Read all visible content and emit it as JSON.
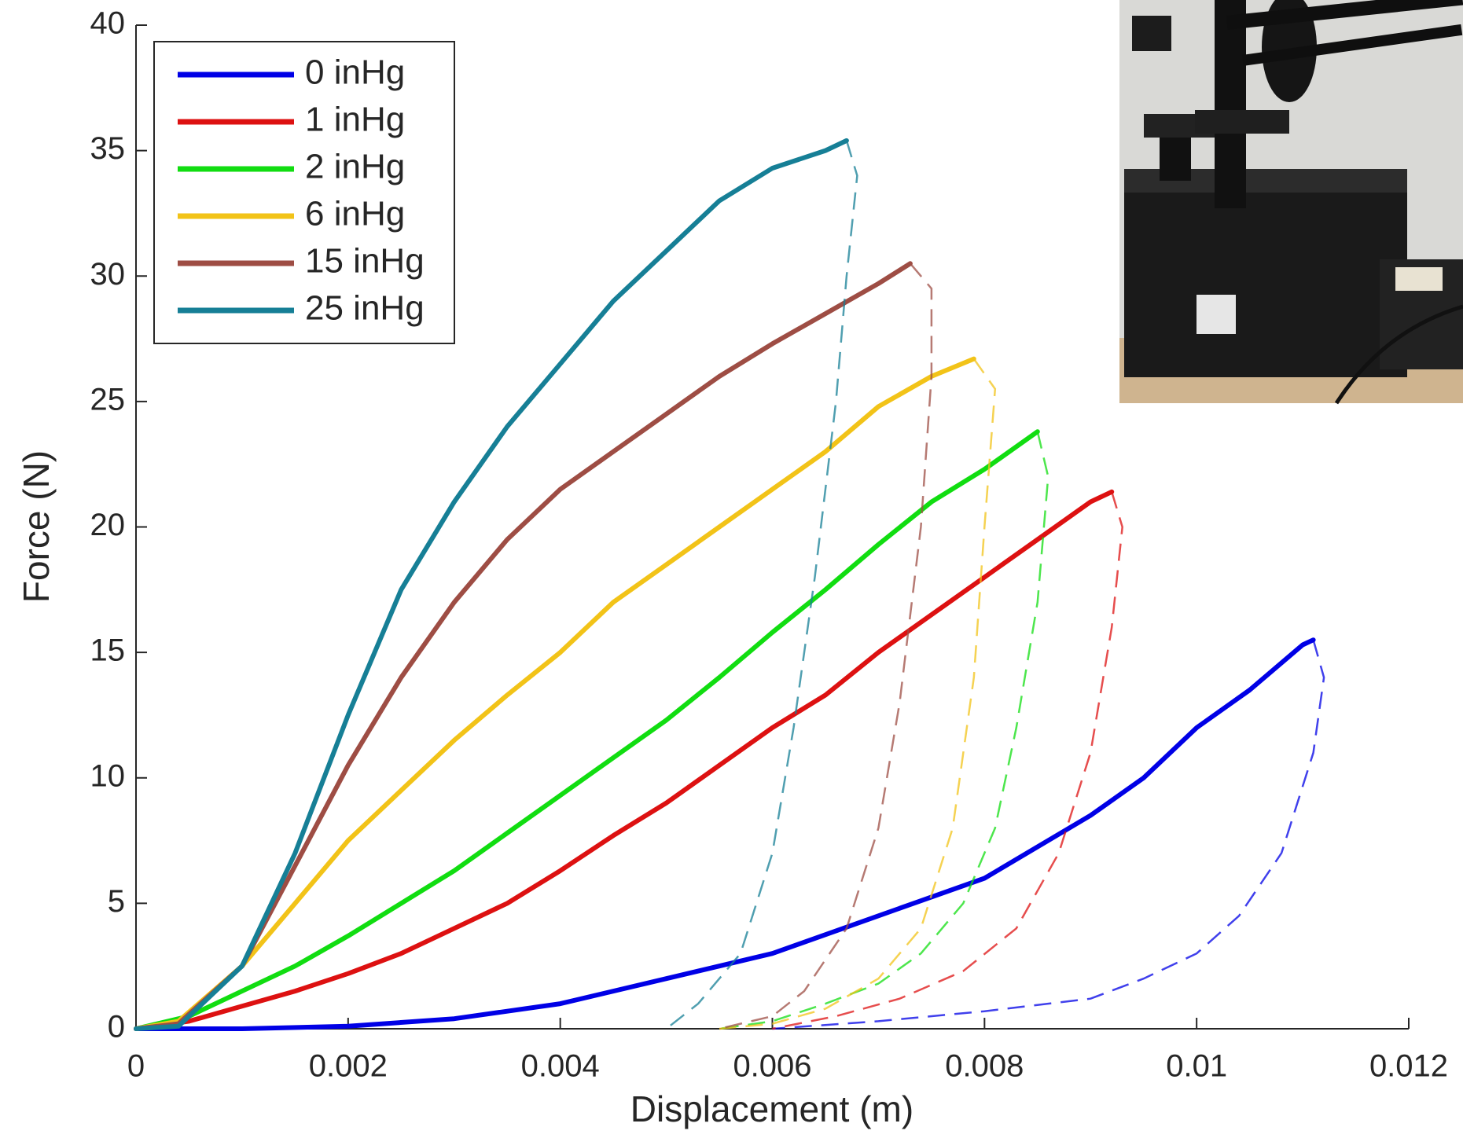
{
  "chart_data": {
    "type": "line",
    "xlabel": "Displacement (m)",
    "ylabel": "Force (N)",
    "xlim": [
      0,
      0.012
    ],
    "ylim": [
      0,
      40
    ],
    "xticks": [
      0,
      0.002,
      0.004,
      0.006,
      0.008,
      0.01,
      0.012
    ],
    "yticks": [
      0,
      5,
      10,
      15,
      20,
      25,
      30,
      35,
      40
    ],
    "legend": "upper left",
    "series": [
      {
        "name": "0 inHg",
        "color": "#0000e6",
        "loading": {
          "x": [
            0,
            0.001,
            0.002,
            0.003,
            0.004,
            0.005,
            0.006,
            0.007,
            0.008,
            0.009,
            0.0095,
            0.01,
            0.0105,
            0.011,
            0.0111
          ],
          "values": [
            0,
            0,
            0.1,
            0.4,
            1,
            2,
            3,
            4.5,
            6,
            8.5,
            10,
            12,
            13.5,
            15.3,
            15.5
          ]
        },
        "unloading": {
          "x": [
            0.0111,
            0.0112,
            0.0111,
            0.0108,
            0.0104,
            0.01,
            0.0095,
            0.009,
            0.008,
            0.007,
            0.006
          ],
          "values": [
            15.5,
            14,
            11,
            7,
            4.5,
            3,
            2,
            1.2,
            0.7,
            0.3,
            0
          ]
        }
      },
      {
        "name": "1 inHg",
        "color": "#dd1111",
        "loading": {
          "x": [
            0,
            0.0005,
            0.001,
            0.0015,
            0.002,
            0.0025,
            0.003,
            0.0035,
            0.004,
            0.0045,
            0.005,
            0.0055,
            0.006,
            0.0065,
            0.007,
            0.0075,
            0.008,
            0.0085,
            0.009,
            0.0092
          ],
          "values": [
            0,
            0.3,
            0.9,
            1.5,
            2.2,
            3,
            4,
            5,
            6.3,
            7.7,
            9,
            10.5,
            12,
            13.3,
            15,
            16.5,
            18,
            19.5,
            21,
            21.4
          ]
        },
        "unloading": {
          "x": [
            0.0092,
            0.0093,
            0.0092,
            0.009,
            0.0087,
            0.0083,
            0.0078,
            0.0072,
            0.0066,
            0.006
          ],
          "values": [
            21.4,
            20,
            16,
            11,
            7,
            4,
            2.3,
            1.2,
            0.5,
            0
          ]
        }
      },
      {
        "name": "2 inHg",
        "color": "#11dd11",
        "loading": {
          "x": [
            0,
            0.0005,
            0.001,
            0.0015,
            0.002,
            0.0025,
            0.003,
            0.0035,
            0.004,
            0.0045,
            0.005,
            0.0055,
            0.006,
            0.0065,
            0.007,
            0.0075,
            0.008,
            0.0085
          ],
          "values": [
            0,
            0.5,
            1.5,
            2.5,
            3.7,
            5,
            6.3,
            7.8,
            9.3,
            10.8,
            12.3,
            14,
            15.8,
            17.5,
            19.3,
            21,
            22.3,
            23.8
          ]
        },
        "unloading": {
          "x": [
            0.0085,
            0.0086,
            0.0085,
            0.0083,
            0.0081,
            0.0078,
            0.0074,
            0.007,
            0.0065,
            0.006,
            0.0055
          ],
          "values": [
            23.8,
            22,
            17,
            12,
            8,
            5,
            3,
            1.8,
            1,
            0.3,
            0
          ]
        }
      },
      {
        "name": "6 inHg",
        "color": "#f2c318",
        "loading": {
          "x": [
            0,
            0.0004,
            0.001,
            0.0015,
            0.002,
            0.0025,
            0.003,
            0.0035,
            0.004,
            0.0045,
            0.005,
            0.0055,
            0.006,
            0.0065,
            0.007,
            0.0075,
            0.0079
          ],
          "values": [
            0,
            0.3,
            2.5,
            5,
            7.5,
            9.5,
            11.5,
            13.3,
            15,
            17,
            18.5,
            20,
            21.5,
            23,
            24.8,
            26,
            26.7
          ]
        },
        "unloading": {
          "x": [
            0.0079,
            0.0081,
            0.008,
            0.0079,
            0.0077,
            0.0074,
            0.007,
            0.0065,
            0.006,
            0.0055
          ],
          "values": [
            26.7,
            25.5,
            20,
            14,
            8,
            4,
            2,
            0.8,
            0.2,
            0
          ]
        }
      },
      {
        "name": "15 inHg",
        "color": "#9e4d44",
        "loading": {
          "x": [
            0,
            0.0004,
            0.001,
            0.0015,
            0.002,
            0.0025,
            0.003,
            0.0035,
            0.004,
            0.0045,
            0.005,
            0.0055,
            0.006,
            0.0065,
            0.007,
            0.0073
          ],
          "values": [
            0,
            0.2,
            2.5,
            6.5,
            10.5,
            14,
            17,
            19.5,
            21.5,
            23,
            24.5,
            26,
            27.3,
            28.5,
            29.7,
            30.5
          ]
        },
        "unloading": {
          "x": [
            0.0073,
            0.0075,
            0.0075,
            0.0074,
            0.0072,
            0.007,
            0.0067,
            0.0063,
            0.006,
            0.0055
          ],
          "values": [
            30.5,
            29.5,
            26,
            20,
            13,
            8,
            4,
            1.5,
            0.5,
            0
          ]
        }
      },
      {
        "name": "25 inHg",
        "color": "#167f96",
        "loading": {
          "x": [
            0,
            0.0004,
            0.001,
            0.0015,
            0.002,
            0.0025,
            0.003,
            0.0035,
            0.004,
            0.0045,
            0.005,
            0.0055,
            0.006,
            0.0065,
            0.0067
          ],
          "values": [
            0,
            0.1,
            2.5,
            7,
            12.5,
            17.5,
            21,
            24,
            26.5,
            29,
            31,
            33,
            34.3,
            35,
            35.4
          ]
        },
        "unloading": {
          "x": [
            0.0067,
            0.0068,
            0.0067,
            0.0066,
            0.0064,
            0.0062,
            0.006,
            0.0057,
            0.0053,
            0.005
          ],
          "values": [
            35.4,
            34,
            30,
            25,
            18,
            12,
            7,
            3,
            1,
            0
          ]
        }
      }
    ]
  }
}
